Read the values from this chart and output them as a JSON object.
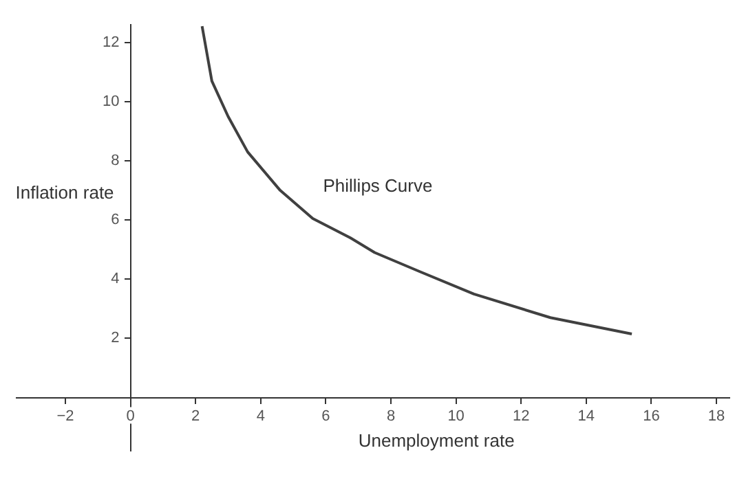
{
  "chart_data": {
    "type": "line",
    "xlabel": "Unemployment rate",
    "ylabel": "Inflation rate",
    "annotations": [
      "Phillips Curve"
    ],
    "series": [
      {
        "color": "#404040",
        "x": [
          2.2,
          2.5,
          3.0,
          3.6,
          4.6,
          5.6,
          6.75,
          7.5,
          8.9,
          10.55,
          12.9,
          15.4
        ],
        "values": [
          12.55,
          10.7,
          9.5,
          8.3,
          7.0,
          6.05,
          5.4,
          4.9,
          4.25,
          3.5,
          2.7,
          2.15
        ]
      }
    ],
    "xlim": [
      -3.5,
      18.4
    ],
    "ylim": [
      -1.8,
      12.6
    ],
    "xticks": [
      -2,
      0,
      2,
      4,
      6,
      8,
      10,
      12,
      14,
      16,
      18
    ],
    "yticks": [
      2,
      4,
      6,
      8,
      10,
      12
    ],
    "grid": false,
    "legend": false,
    "marker": "none",
    "line_style": "solid"
  }
}
